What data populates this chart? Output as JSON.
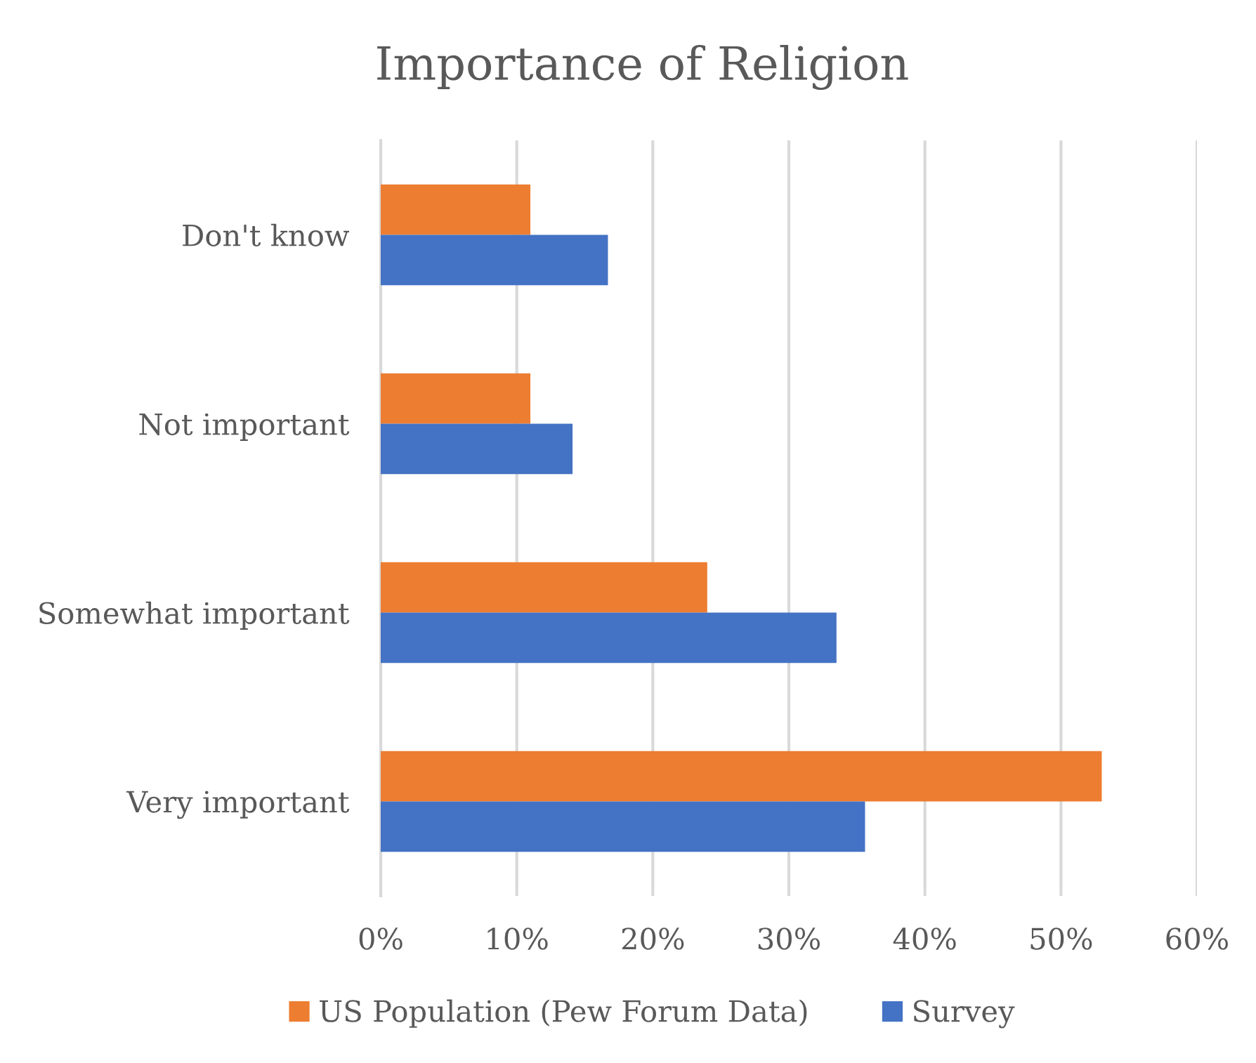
{
  "chart_data": {
    "type": "bar",
    "orientation": "horizontal",
    "title": "Importance of Religion",
    "categories": [
      "Don't know",
      "Not important",
      "Somewhat important",
      "Very important"
    ],
    "series": [
      {
        "name": "US Population (Pew Forum Data)",
        "color": "#ed7d31",
        "values": [
          11,
          11,
          24,
          53
        ]
      },
      {
        "name": "Survey",
        "color": "#4472c4",
        "values": [
          16.7,
          14.1,
          33.5,
          35.6
        ]
      }
    ],
    "xlim": [
      0,
      60
    ],
    "xticks": [
      {
        "value": 0,
        "label": "0%"
      },
      {
        "value": 10,
        "label": "10%"
      },
      {
        "value": 20,
        "label": "20%"
      },
      {
        "value": 30,
        "label": "30%"
      },
      {
        "value": 40,
        "label": "40%"
      },
      {
        "value": 50,
        "label": "50%"
      },
      {
        "value": 60,
        "label": "60%"
      }
    ],
    "grid": "x",
    "legend": "bottom"
  }
}
